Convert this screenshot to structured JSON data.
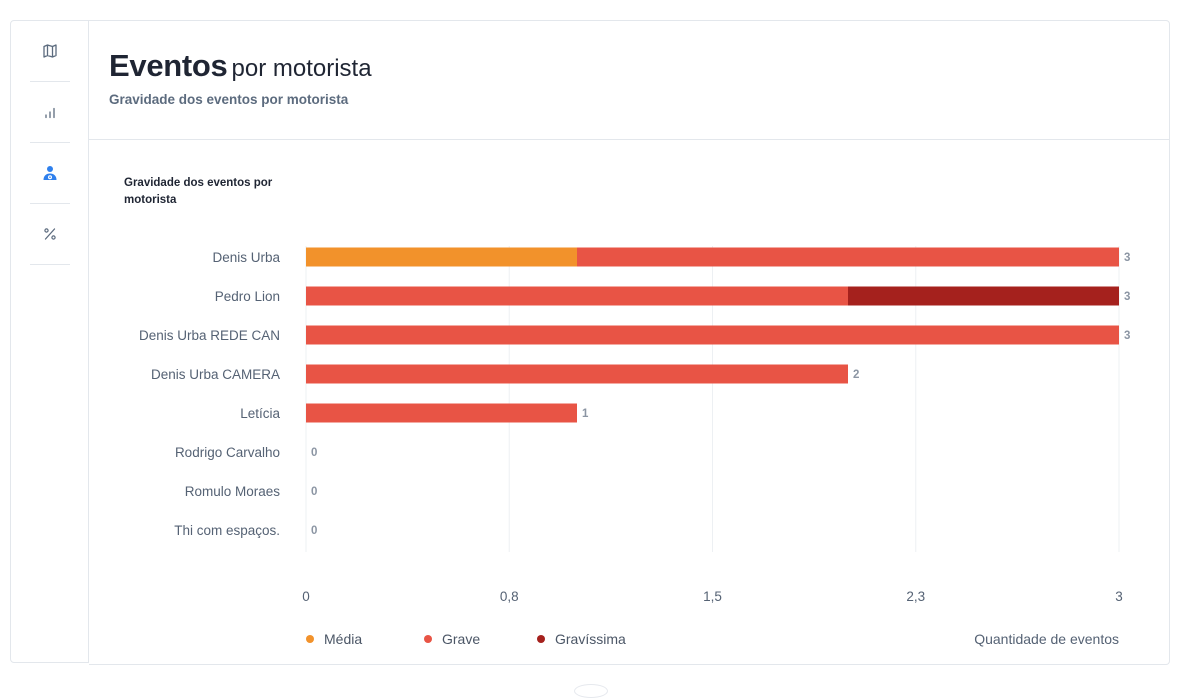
{
  "header": {
    "title_strong": "Eventos",
    "title_light": "por motorista",
    "subtitle": "Gravidade dos eventos por motorista"
  },
  "sidebar": {
    "items": [
      {
        "icon": "map-icon",
        "active": false
      },
      {
        "icon": "bar-chart-icon",
        "active": false
      },
      {
        "icon": "driver-icon",
        "active": true
      },
      {
        "icon": "percent-icon",
        "active": false
      }
    ]
  },
  "colors": {
    "media": "#f2922b",
    "grave": "#e85445",
    "gravissima": "#a5211d",
    "active_icon": "#2f80ed",
    "inactive_icon": "#5c6b7e"
  },
  "chart_data": {
    "type": "bar",
    "orientation": "horizontal",
    "stacked": true,
    "title": "Gravidade dos eventos por motorista",
    "xlabel": "Quantidade de eventos",
    "categories": [
      "Denis Urba",
      "Pedro Lion",
      "Denis Urba REDE CAN",
      "Denis Urba CAMERA",
      "Letícia",
      "Rodrigo Carvalho",
      "Romulo Moraes",
      "Thi com espaços."
    ],
    "series": [
      {
        "name": "Média",
        "color": "#f2922b",
        "values": [
          1,
          0,
          0,
          0,
          0,
          0,
          0,
          0
        ]
      },
      {
        "name": "Grave",
        "color": "#e85445",
        "values": [
          2,
          2,
          3,
          2,
          1,
          0,
          0,
          0
        ]
      },
      {
        "name": "Gravíssima",
        "color": "#a5211d",
        "values": [
          0,
          1,
          0,
          0,
          0,
          0,
          0,
          0
        ]
      }
    ],
    "totals": [
      "3",
      "3",
      "3",
      "2",
      "1",
      "0",
      "0",
      "0"
    ],
    "xlim": [
      0,
      3
    ],
    "xticks": [
      {
        "value": 0,
        "label": "0"
      },
      {
        "value": 0.75,
        "label": "0,8"
      },
      {
        "value": 1.5,
        "label": "1,5"
      },
      {
        "value": 2.25,
        "label": "2,3"
      },
      {
        "value": 3,
        "label": "3"
      }
    ],
    "grid": true,
    "legend": "bottom-left"
  }
}
